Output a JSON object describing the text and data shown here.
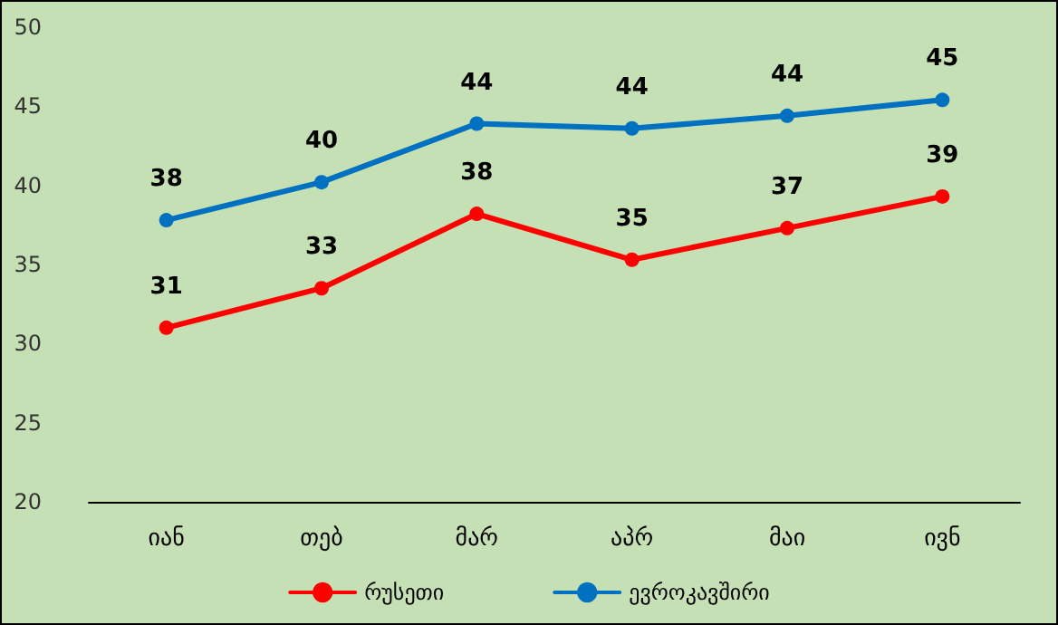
{
  "chart_data": {
    "type": "line",
    "categories": [
      "იან",
      "თებ",
      "მარ",
      "აპრ",
      "მაი",
      "ივნ"
    ],
    "series": [
      {
        "name": "რუსეთი",
        "color": "#ff0000",
        "values": [
          31.0,
          33.5,
          38.2,
          35.3,
          37.3,
          39.3
        ],
        "value_labels": [
          "31",
          "33",
          "38",
          "35",
          "37",
          "39"
        ]
      },
      {
        "name": "ევროკავშირი",
        "color": "#0070c0",
        "values": [
          37.8,
          40.2,
          43.9,
          43.6,
          44.4,
          45.4
        ],
        "value_labels": [
          "38",
          "40",
          "44",
          "44",
          "44",
          "45"
        ]
      }
    ],
    "ylim": [
      20,
      50
    ],
    "yticks": [
      20,
      25,
      30,
      35,
      40,
      45,
      50
    ],
    "grid": false,
    "legend": "bottom",
    "marker": "circle",
    "line_style": "solid"
  }
}
